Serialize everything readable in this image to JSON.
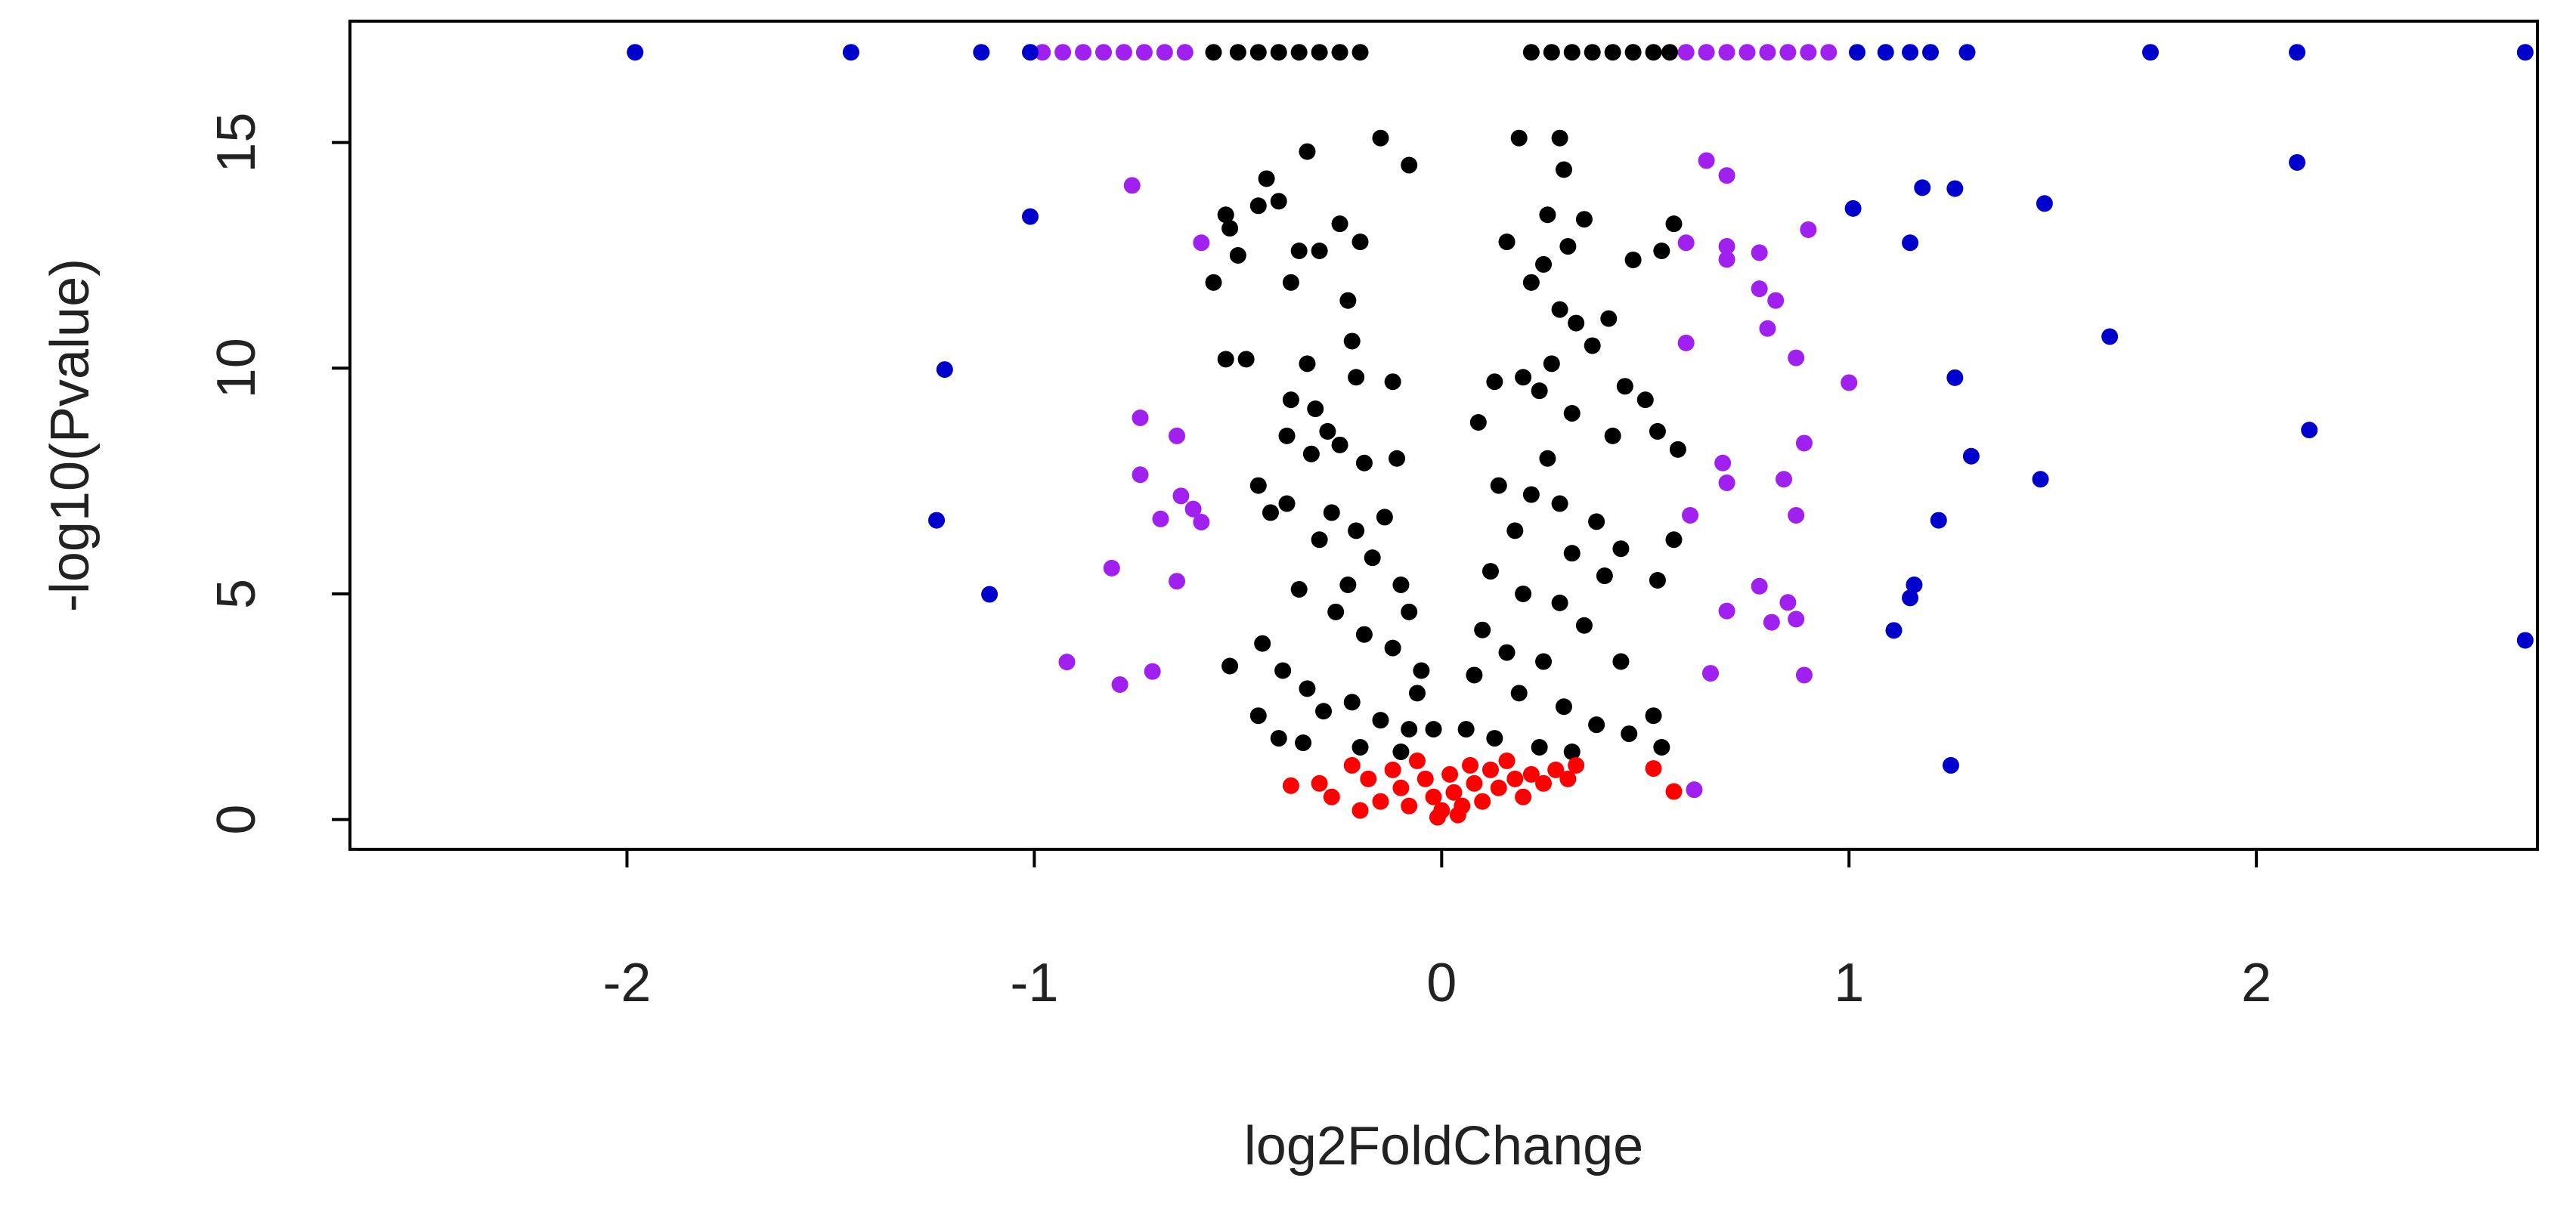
{
  "chart_data": {
    "type": "scatter",
    "xlabel": "log2FoldChange",
    "ylabel": "-log10(Pvalue)",
    "xlim": [
      -2.68,
      2.69
    ],
    "ylim": [
      -0.66,
      17.69
    ],
    "xticks": [
      -2,
      -1,
      0,
      1,
      2
    ],
    "yticks": [
      0,
      5,
      10,
      15
    ],
    "series": [
      {
        "color": "#000000",
        "x": [
          -0.53,
          -0.52,
          -0.5,
          -0.56,
          -0.53,
          -0.48,
          -0.45,
          -0.43,
          -0.4,
          -0.37,
          -0.35,
          -0.3,
          -0.33,
          -0.25,
          -0.2,
          -0.15,
          -0.08,
          -0.23,
          -0.22,
          -0.21,
          -0.12,
          -0.33,
          -0.37,
          -0.31,
          -0.38,
          -0.32,
          -0.45,
          -0.38,
          -0.28,
          -0.25,
          -0.19,
          -0.11,
          -0.14,
          -0.27,
          -0.21,
          -0.17,
          -0.1,
          -0.08,
          -0.23,
          -0.35,
          -0.26,
          -0.19,
          -0.12,
          -0.05,
          -0.44,
          -0.39,
          -0.33,
          -0.29,
          -0.22,
          -0.15,
          -0.08,
          -0.45,
          -0.4,
          -0.34,
          -0.2,
          -0.1,
          -0.52,
          -0.42,
          -0.3,
          -0.06,
          -0.02,
          0.19,
          0.29,
          0.3,
          0.26,
          0.35,
          0.31,
          0.16,
          0.25,
          0.22,
          0.29,
          0.33,
          0.41,
          0.47,
          0.57,
          0.54,
          0.37,
          0.27,
          0.2,
          0.13,
          0.09,
          0.24,
          0.32,
          0.45,
          0.5,
          0.53,
          0.58,
          0.42,
          0.26,
          0.14,
          0.22,
          0.29,
          0.38,
          0.44,
          0.57,
          0.18,
          0.32,
          0.4,
          0.53,
          0.12,
          0.2,
          0.29,
          0.35,
          0.1,
          0.16,
          0.25,
          0.44,
          0.08,
          0.19,
          0.3,
          0.38,
          0.52,
          0.54,
          0.06,
          0.13,
          0.24,
          0.32,
          0.46,
          -0.56,
          -0.5,
          -0.45,
          -0.4,
          -0.35,
          -0.3,
          -0.25,
          -0.2,
          0.22,
          0.27,
          0.32,
          0.37,
          0.42,
          0.47,
          0.52,
          0.56
        ],
        "values": [
          13.4,
          13.1,
          12.5,
          11.9,
          10.2,
          10.2,
          13.6,
          14.2,
          13.7,
          11.9,
          12.6,
          12.6,
          14.8,
          13.2,
          12.8,
          15.1,
          14.5,
          11.5,
          10.6,
          9.8,
          9.7,
          10.1,
          9.3,
          9.1,
          8.5,
          8.1,
          7.4,
          7.0,
          8.6,
          8.3,
          7.9,
          8.0,
          6.7,
          6.8,
          6.4,
          5.8,
          5.2,
          4.6,
          5.2,
          5.1,
          4.6,
          4.1,
          3.8,
          3.3,
          3.9,
          3.3,
          2.9,
          2.4,
          2.6,
          2.2,
          2.0,
          2.3,
          1.8,
          1.7,
          1.6,
          1.5,
          3.4,
          6.8,
          6.2,
          2.8,
          2.0,
          15.1,
          15.1,
          14.4,
          13.4,
          13.3,
          12.7,
          12.8,
          12.3,
          11.9,
          11.3,
          11.0,
          11.1,
          12.4,
          13.2,
          12.6,
          10.5,
          10.1,
          9.8,
          9.7,
          8.8,
          9.5,
          9.0,
          9.6,
          9.3,
          8.6,
          8.2,
          8.5,
          8.0,
          7.4,
          7.2,
          7.0,
          6.6,
          6.0,
          6.2,
          6.4,
          5.9,
          5.4,
          5.3,
          5.5,
          5.0,
          4.8,
          4.3,
          4.2,
          3.7,
          3.5,
          3.5,
          3.2,
          2.8,
          2.5,
          2.1,
          2.3,
          1.6,
          2.0,
          1.8,
          1.6,
          1.5,
          1.9,
          17,
          17,
          17,
          17,
          17,
          17,
          17,
          17,
          17,
          17,
          17,
          17,
          17,
          17,
          17,
          17
        ]
      },
      {
        "color": "#A020F0",
        "x": [
          -0.76,
          -0.74,
          -0.65,
          -0.74,
          -0.64,
          -0.69,
          -0.61,
          -0.59,
          -0.81,
          -0.65,
          -0.92,
          -0.71,
          -0.79,
          -0.59,
          0.65,
          0.7,
          0.6,
          0.7,
          0.7,
          0.78,
          0.9,
          0.78,
          0.82,
          0.8,
          0.6,
          0.87,
          1.0,
          0.89,
          0.69,
          0.7,
          0.84,
          0.61,
          0.87,
          0.78,
          0.85,
          0.87,
          0.7,
          0.81,
          0.66,
          0.89,
          0.62,
          -0.98,
          -0.93,
          -0.88,
          -0.83,
          -0.78,
          -0.73,
          -0.68,
          -0.63,
          0.6,
          0.65,
          0.7,
          0.75,
          0.8,
          0.85,
          0.9,
          0.95
        ],
        "values": [
          14.05,
          8.9,
          8.5,
          7.64,
          7.17,
          6.66,
          6.88,
          6.59,
          5.57,
          5.28,
          3.49,
          3.28,
          2.99,
          12.78,
          14.6,
          14.27,
          12.78,
          12.7,
          12.41,
          12.56,
          13.07,
          11.76,
          11.5,
          10.88,
          10.56,
          10.23,
          9.68,
          8.34,
          7.9,
          7.46,
          7.54,
          6.74,
          6.74,
          5.17,
          4.81,
          4.44,
          4.62,
          4.37,
          3.24,
          3.2,
          0.66,
          17,
          17,
          17,
          17,
          17,
          17,
          17,
          17,
          17,
          17,
          17,
          17,
          17,
          17,
          17,
          17
        ]
      },
      {
        "color": "#0000CD",
        "x": [
          -1.98,
          -1.45,
          -1.13,
          -1.01,
          1.02,
          1.09,
          1.15,
          1.2,
          1.29,
          1.74,
          2.1,
          2.66,
          -1.01,
          -1.22,
          -1.24,
          -1.11,
          1.01,
          1.18,
          1.26,
          1.48,
          1.15,
          1.64,
          2.1,
          1.26,
          1.3,
          1.47,
          2.13,
          1.22,
          1.16,
          1.15,
          1.11,
          1.25,
          2.66
        ],
        "values": [
          17,
          17,
          17,
          17,
          17,
          17,
          17,
          17,
          17,
          17,
          17,
          17,
          13.36,
          9.97,
          6.63,
          4.99,
          13.54,
          14.0,
          13.98,
          13.65,
          12.78,
          10.7,
          14.56,
          9.79,
          8.05,
          7.54,
          8.63,
          6.63,
          5.2,
          4.91,
          4.19,
          1.2,
          3.97
        ]
      },
      {
        "color": "#FF0000",
        "x": [
          -0.37,
          -0.3,
          -0.27,
          -0.22,
          -0.18,
          -0.15,
          -0.12,
          -0.1,
          -0.08,
          -0.06,
          -0.04,
          -0.02,
          0,
          0.02,
          0.03,
          0.05,
          0.07,
          0.08,
          0.1,
          0.12,
          0.14,
          0.16,
          0.18,
          0.2,
          0.22,
          0.25,
          0.28,
          0.31,
          0.33,
          -0.2,
          0.52,
          0.57,
          -0.01,
          0.04
        ],
        "values": [
          0.75,
          0.8,
          0.5,
          1.2,
          0.9,
          0.4,
          1.1,
          0.7,
          0.3,
          1.3,
          0.9,
          0.5,
          0.2,
          1.0,
          0.6,
          0.3,
          1.2,
          0.8,
          0.4,
          1.1,
          0.7,
          1.3,
          0.9,
          0.5,
          1.0,
          0.8,
          1.1,
          0.9,
          1.2,
          0.2,
          1.13,
          0.62,
          0.05,
          0.1
        ]
      }
    ]
  }
}
